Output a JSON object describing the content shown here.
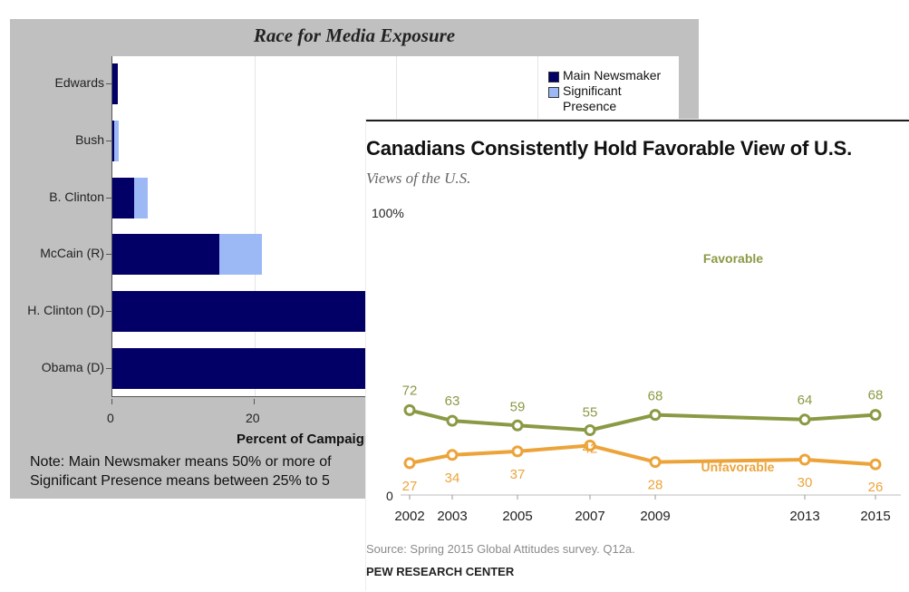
{
  "chart_data": [
    {
      "type": "bar",
      "orientation": "horizontal",
      "stacked": true,
      "title": "Race for Media Exposure",
      "categories": [
        "Edwards",
        "Bush",
        "B. Clinton",
        "McCain (R)",
        "H. Clinton (D)",
        "Obama (D)"
      ],
      "series": [
        {
          "name": "Main Newsmaker",
          "color": "#020066",
          "values": [
            0.8,
            0.3,
            3,
            15,
            48,
            52
          ]
        },
        {
          "name": "Significant Presence",
          "color": "#9cb9f5",
          "values": [
            0,
            0.6,
            2,
            6,
            0,
            0
          ]
        }
      ],
      "xlabel": "Percent of Campaign",
      "xticks": [
        "0",
        "20"
      ],
      "xlim": [
        0,
        80
      ],
      "legend_items": [
        "Main Newsmaker",
        "Significant Presence"
      ],
      "legend_position": "top-right",
      "notes": [
        "Note: Main Newsmaker means 50% or more of",
        "Significant Presence means between 25% to 5"
      ],
      "partially_hidden": true
    },
    {
      "type": "line",
      "title": "Canadians  Consistently  Hold Favorable View of U.S.",
      "subtitle": "Views of the U.S.",
      "x": [
        2002,
        2003,
        2005,
        2007,
        2009,
        2013,
        2015
      ],
      "xtick_labels": [
        "2002",
        "2003",
        "2005",
        "2007",
        "2009",
        "2013",
        "2015"
      ],
      "ylim": [
        0,
        100
      ],
      "ytick_labels": [
        "100%",
        "0"
      ],
      "series": [
        {
          "name": "Favorable",
          "color": "#8a9a44",
          "values": [
            72,
            63,
            59,
            55,
            68,
            64,
            68
          ]
        },
        {
          "name": "Unfavorable",
          "color": "#eca43a",
          "values": [
            27,
            34,
            37,
            42,
            28,
            30,
            26
          ]
        }
      ],
      "source": "Source: Spring 2015 Global Attitudes survey. Q12a.",
      "organization": "PEW RESEARCH CENTER"
    }
  ]
}
